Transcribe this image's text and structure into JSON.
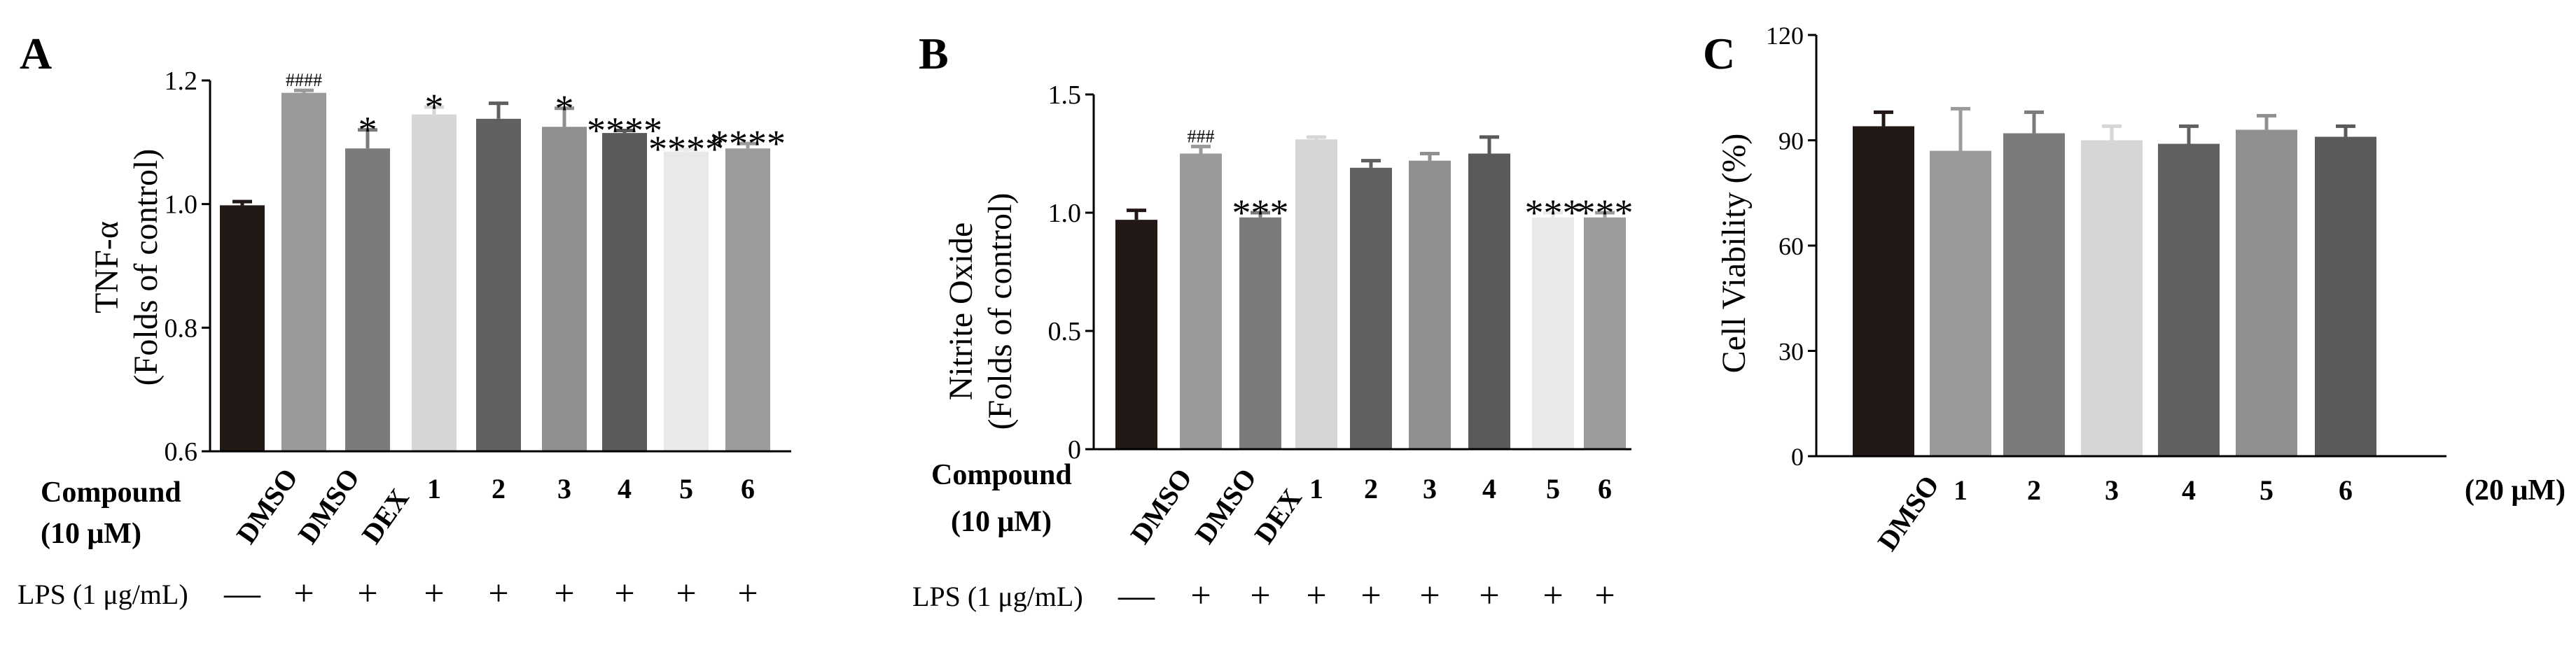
{
  "figure": {
    "panels": [
      {
        "label": "A",
        "ylabel_line1": "TNF-α",
        "ylabel_line2": "(Folds of control)",
        "compound_label_line1": "Compound",
        "compound_label_line2": "(10 μM)",
        "lps_label": "LPS (1 μg/mL)",
        "lps": [
          "—",
          "+",
          "+",
          "+",
          "+",
          "+",
          "+",
          "+",
          "+"
        ]
      },
      {
        "label": "B",
        "ylabel_line1": "Nitrite Oxide",
        "ylabel_line2": "(Folds of control)",
        "compound_label_line1": "Compound",
        "compound_label_line2": "(10 μM)",
        "lps_label": "LPS (1 μg/mL)",
        "lps": [
          "—",
          "+",
          "+",
          "+",
          "+",
          "+",
          "+",
          "+",
          "+"
        ]
      },
      {
        "label": "C",
        "ylabel_line1": "Cell Viability (%)",
        "ylabel_line2": "",
        "concentration_label": "(20 μM)"
      }
    ]
  },
  "chart_data": [
    {
      "type": "bar",
      "panel": "A",
      "title": "",
      "ylabel": "TNF-α (Folds of control)",
      "xlabel": "Compound (10 μM)",
      "ylim": [
        0.6,
        1.2
      ],
      "yticks": [
        0.6,
        0.8,
        1.0,
        1.2
      ],
      "ytick_labels": [
        "0.6",
        "0.8",
        "1.0",
        "1.2"
      ],
      "categories": [
        "DMSO",
        "DMSO",
        "DEX",
        "1",
        "2",
        "3",
        "4",
        "5",
        "6"
      ],
      "label_rotated": [
        true,
        true,
        true,
        false,
        false,
        false,
        false,
        false,
        false
      ],
      "values": [
        0.998,
        1.18,
        1.09,
        1.145,
        1.138,
        1.125,
        1.115,
        1.085,
        1.09
      ],
      "errors": [
        0.006,
        0.004,
        0.03,
        0.012,
        0.025,
        0.03,
        0.004,
        0.004,
        0.008
      ],
      "colors": [
        "#221816",
        "#9a9a9a",
        "#7b7b7b",
        "#d6d6d6",
        "#606060",
        "#8f8f8f",
        "#5a5a5a",
        "#e9e9e9",
        "#9b9b9b"
      ],
      "annotations": [
        "",
        "####",
        "*",
        "*",
        "",
        "*",
        "****",
        "****",
        "****"
      ]
    },
    {
      "type": "bar",
      "panel": "B",
      "title": "",
      "ylabel": "Nitrite Oxide (Folds of control)",
      "xlabel": "Compound (10 μM)",
      "ylim": [
        0,
        1.5
      ],
      "yticks": [
        0,
        0.5,
        1.0,
        1.5
      ],
      "ytick_labels": [
        "0",
        "0.5",
        "1.0",
        "1.5"
      ],
      "categories": [
        "DMSO",
        "DMSO",
        "DEX",
        "1",
        "2",
        "3",
        "4",
        "5",
        "6"
      ],
      "label_rotated": [
        true,
        true,
        true,
        false,
        false,
        false,
        false,
        false,
        false
      ],
      "values": [
        0.97,
        1.25,
        0.98,
        1.31,
        1.19,
        1.22,
        1.25,
        0.98,
        0.98
      ],
      "errors": [
        0.04,
        0.03,
        0.02,
        0.01,
        0.03,
        0.03,
        0.07,
        0.02,
        0.02
      ],
      "colors": [
        "#221816",
        "#9a9a9a",
        "#7b7b7b",
        "#d6d6d6",
        "#606060",
        "#8f8f8f",
        "#5a5a5a",
        "#e9e9e9",
        "#9b9b9b"
      ],
      "annotations": [
        "",
        "###",
        "***",
        "",
        "",
        "",
        "",
        "***",
        "***"
      ]
    },
    {
      "type": "bar",
      "panel": "C",
      "title": "",
      "ylabel": "Cell Viability (%)",
      "xlabel": "(20 μM)",
      "ylim": [
        0,
        120
      ],
      "yticks": [
        0,
        30,
        60,
        90,
        120
      ],
      "ytick_labels": [
        "0",
        "30",
        "60",
        "90",
        "120"
      ],
      "categories": [
        "DMSO",
        "1",
        "2",
        "3",
        "4",
        "5",
        "6"
      ],
      "label_rotated": [
        true,
        false,
        false,
        false,
        false,
        false,
        false
      ],
      "values": [
        94,
        87,
        92,
        90,
        89,
        93,
        91
      ],
      "errors": [
        4,
        12,
        6,
        4,
        5,
        4,
        3
      ],
      "colors": [
        "#221816",
        "#9a9a9a",
        "#7b7b7b",
        "#d6d6d6",
        "#606060",
        "#8f8f8f",
        "#5a5a5a"
      ],
      "annotations": [
        "",
        "",
        "",
        "",
        "",
        "",
        ""
      ]
    }
  ]
}
